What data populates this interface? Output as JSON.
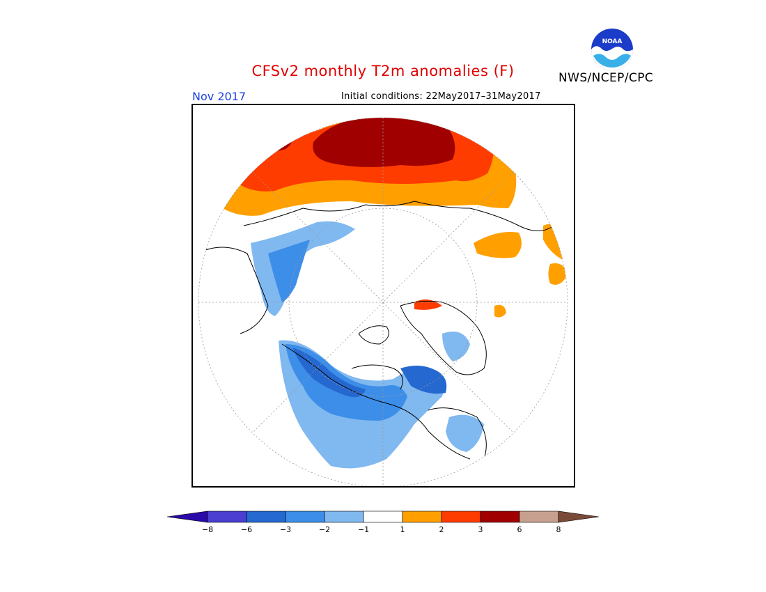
{
  "title": "CFSv2 monthly T2m anomalies (F)",
  "month": "Nov 2017",
  "initial_conditions": "Initial conditions: 22May2017–31May2017",
  "agency": "NWS/NCEP/CPC",
  "logo_text": "NOAA",
  "colorbar": {
    "ticks": [
      "−8",
      "−6",
      "−3",
      "−2",
      "−1",
      "1",
      "2",
      "3",
      "6",
      "8"
    ],
    "colors": [
      "#2a0aa8",
      "#4a3ed0",
      "#2468d0",
      "#3c8ee8",
      "#80b8f0",
      "#ffffff",
      "#ffa000",
      "#ff3c00",
      "#a00000",
      "#c8a090",
      "#7a4a38"
    ]
  },
  "palette": {
    "land_outline": "#000000",
    "grid": "#9a9a9a",
    "frame": "#000000"
  }
}
